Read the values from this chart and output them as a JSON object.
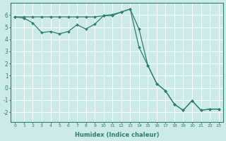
{
  "xlabel": "Humidex (Indice chaleur)",
  "background_color": "#cceae8",
  "grid_color": "#ffffff",
  "line_color": "#2e7f6f",
  "xlim": [
    -0.5,
    23.5
  ],
  "ylim": [
    -2.8,
    7.0
  ],
  "yticks": [
    -2,
    -1,
    0,
    1,
    2,
    3,
    4,
    5,
    6
  ],
  "xticks": [
    0,
    1,
    2,
    3,
    4,
    5,
    6,
    7,
    8,
    9,
    10,
    11,
    12,
    13,
    14,
    15,
    16,
    17,
    18,
    19,
    20,
    21,
    22,
    23
  ],
  "line1_x": [
    0,
    1,
    2,
    3,
    4,
    5,
    6,
    7,
    8,
    9,
    10,
    11,
    12,
    13,
    14,
    15,
    16,
    17,
    18,
    19,
    20,
    21,
    22,
    23
  ],
  "line1_y": [
    5.85,
    5.75,
    5.35,
    4.55,
    4.65,
    4.45,
    4.65,
    5.2,
    4.85,
    5.25,
    5.95,
    5.95,
    6.25,
    6.5,
    4.85,
    1.85,
    0.35,
    -0.25,
    -1.35,
    -1.85,
    -1.05,
    -1.85,
    -1.75,
    -1.75
  ],
  "line2_x": [
    0,
    1,
    2,
    3,
    4,
    5,
    6,
    7,
    8,
    9,
    10,
    11,
    12,
    13,
    14,
    15,
    16,
    17,
    18,
    19,
    20,
    21,
    22,
    23
  ],
  "line2_y": [
    5.85,
    5.85,
    5.85,
    5.85,
    5.85,
    5.85,
    5.85,
    5.85,
    5.85,
    5.85,
    5.95,
    6.05,
    6.25,
    6.5,
    3.35,
    1.85,
    0.35,
    -0.25,
    -1.35,
    -1.85,
    -1.05,
    -1.85,
    -1.75,
    -1.75
  ]
}
